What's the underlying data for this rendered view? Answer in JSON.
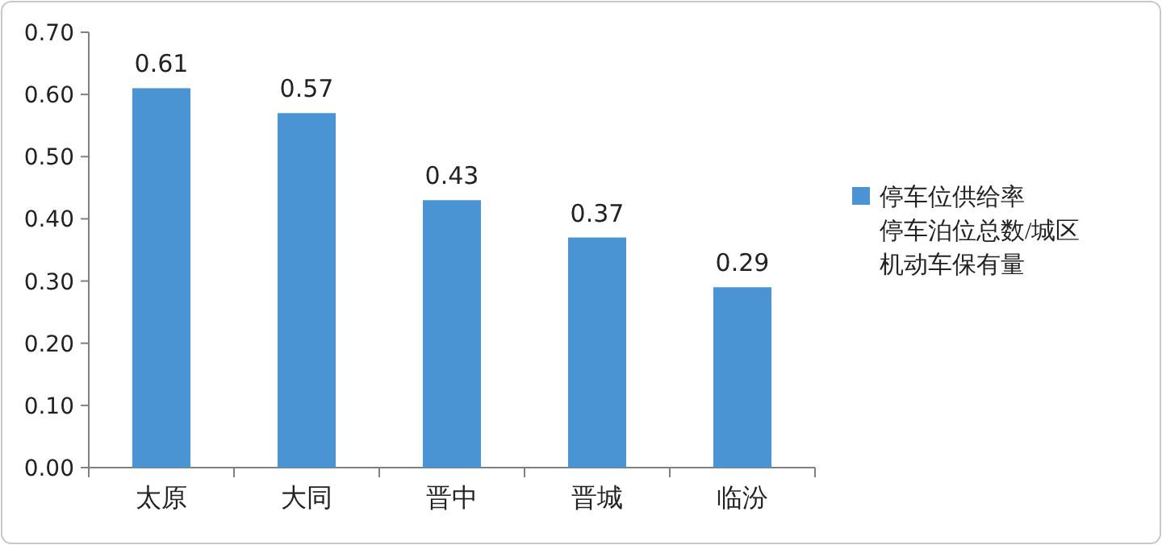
{
  "chart_data": {
    "type": "bar",
    "categories": [
      "太原",
      "大同",
      "晋中",
      "晋城",
      "临汾"
    ],
    "series": [
      {
        "name": "停车位供给率停车泊位总数/城区机动车保有量",
        "color": "#4a94d4",
        "values": [
          0.61,
          0.57,
          0.43,
          0.37,
          0.29
        ]
      }
    ],
    "ylim": [
      0,
      0.7
    ],
    "yticks": [
      {
        "value": 0,
        "label": "0.00"
      },
      {
        "value": 0.1,
        "label": "0.10"
      },
      {
        "value": 0.2,
        "label": "0.20"
      },
      {
        "value": 0.3,
        "label": "0.30"
      },
      {
        "value": 0.4,
        "label": "0.40"
      },
      {
        "value": 0.5,
        "label": "0.50"
      },
      {
        "value": 0.6,
        "label": "0.60"
      },
      {
        "value": 0.7,
        "label": "0.70"
      }
    ],
    "data_labels": true,
    "legend": "right",
    "grid": false
  }
}
